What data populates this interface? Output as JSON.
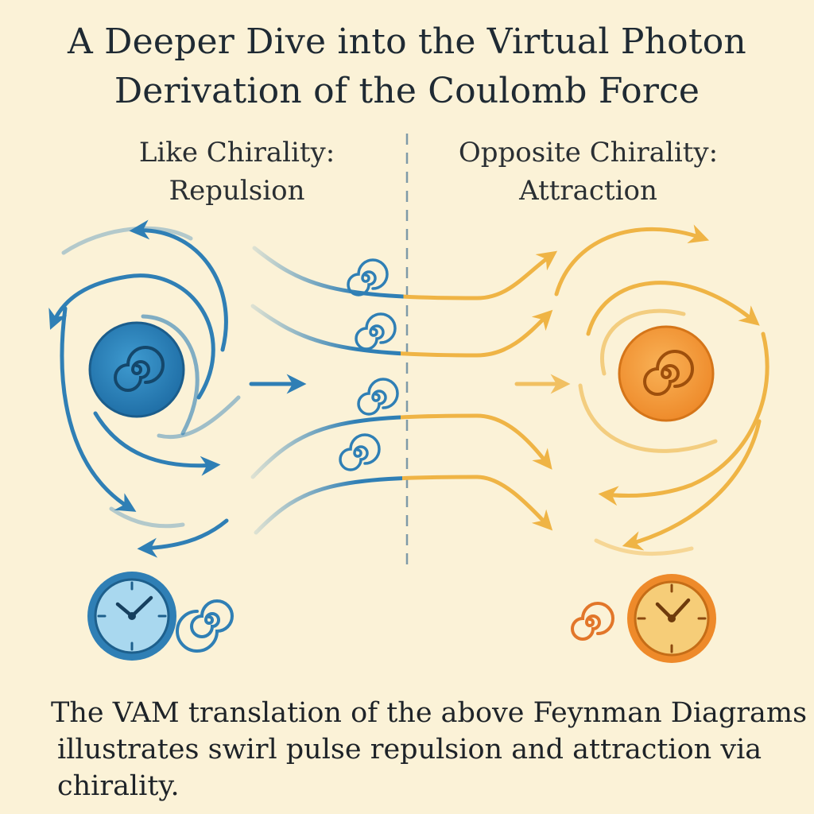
{
  "title": {
    "line1": "A Deeper Dive into the Virtual Photon",
    "line2": "Derivation of the Coulomb Force"
  },
  "left_panel": {
    "label_line1": "Like Chirality:",
    "label_line2": "Repulsion"
  },
  "right_panel": {
    "label_line1": "Opposite Chirality:",
    "label_line2": "Attraction"
  },
  "caption": {
    "line1": "The VAM translation of the above Feynman Diagrams",
    "line2": "illustrates swirl pulse repulsion and attraction via",
    "line3": "chirality."
  },
  "colors": {
    "background": "#fbf2d7",
    "like_chirality": "#2f7fb5",
    "opposite_chirality": "#efb445",
    "divider": "#7f9aa8"
  }
}
